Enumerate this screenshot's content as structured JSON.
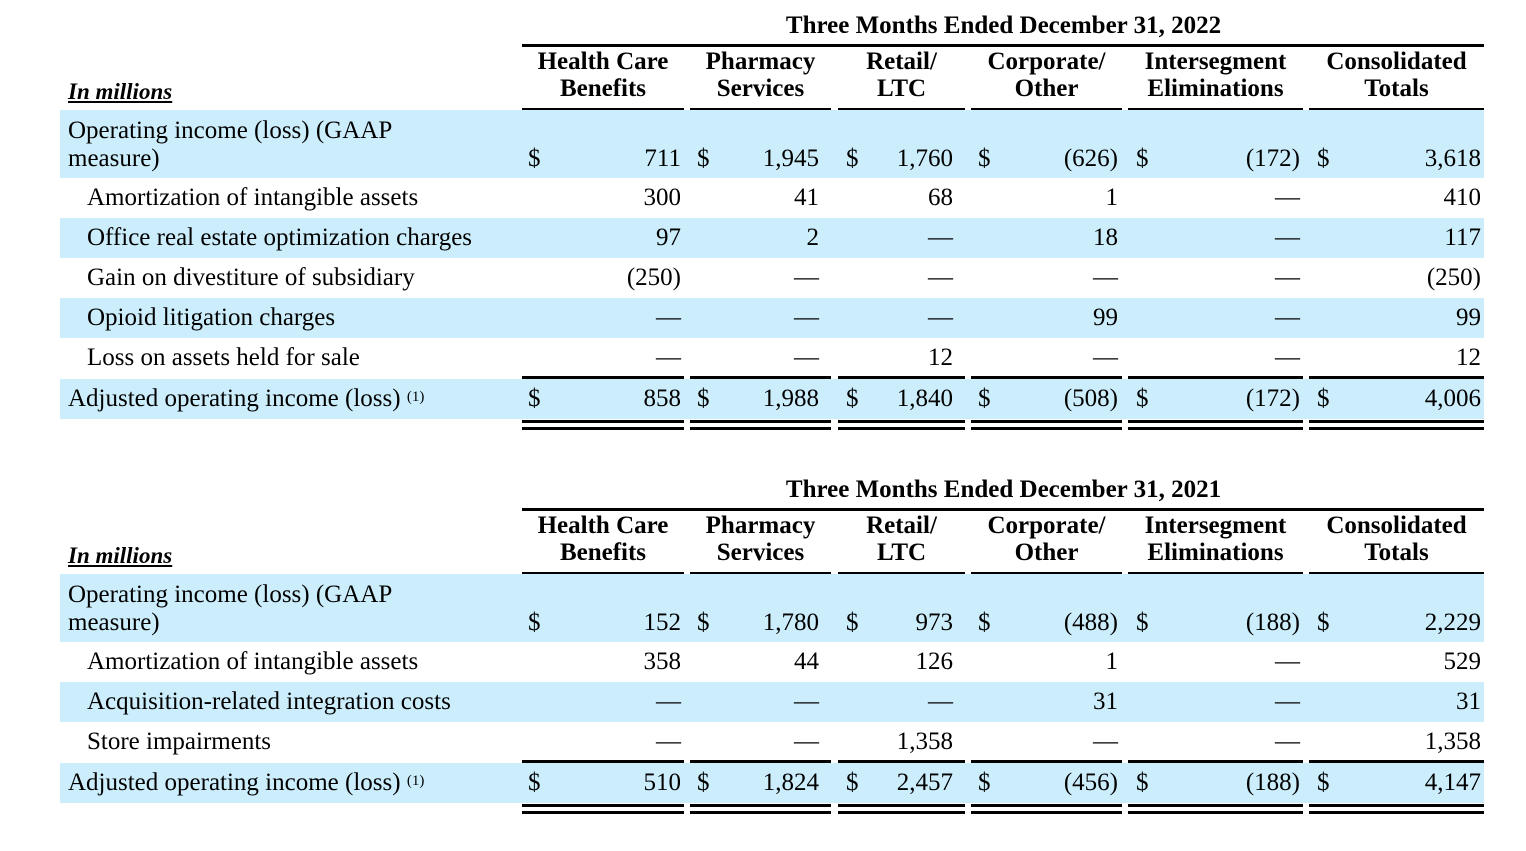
{
  "tables": [
    {
      "period": "Three Months Ended December 31, 2022",
      "units_label": "In millions",
      "columns": [
        {
          "line1": "Health Care",
          "line2": "Benefits"
        },
        {
          "line1": "Pharmacy",
          "line2": "Services"
        },
        {
          "line1": "Retail/",
          "line2": "LTC"
        },
        {
          "line1": "Corporate/",
          "line2": "Other"
        },
        {
          "line1": "Intersegment",
          "line2": "Eliminations"
        },
        {
          "line1": "Consolidated",
          "line2": "Totals"
        }
      ],
      "currency_symbol": "$",
      "rows": [
        {
          "label": "Operating income (loss) (GAAP measure)",
          "label_line1": "Operating income (loss) (GAAP",
          "label_line2": "measure)",
          "values": [
            "711",
            "1,945",
            "1,760",
            "(626)",
            "(172)",
            "3,618"
          ],
          "show_dollar": true,
          "shaded": true
        },
        {
          "label": "Amortization of intangible assets",
          "values": [
            "300",
            "41",
            "68",
            "1",
            "—",
            "410"
          ],
          "shaded": false
        },
        {
          "label": "Office real estate optimization charges",
          "values": [
            "97",
            "2",
            "—",
            "18",
            "—",
            "117"
          ],
          "shaded": true
        },
        {
          "label": "Gain on divestiture of subsidiary",
          "values": [
            "(250)",
            "—",
            "—",
            "—",
            "—",
            "(250)"
          ],
          "shaded": false
        },
        {
          "label": "Opioid litigation charges",
          "values": [
            "—",
            "—",
            "—",
            "99",
            "—",
            "99"
          ],
          "shaded": true
        },
        {
          "label": "Loss on assets held for sale",
          "values": [
            "—",
            "—",
            "12",
            "—",
            "—",
            "12"
          ],
          "shaded": false
        }
      ],
      "total_row": {
        "label": "Adjusted operating income (loss)",
        "footnote": "(1)",
        "values": [
          "858",
          "1,988",
          "1,840",
          "(508)",
          "(172)",
          "4,006"
        ]
      }
    },
    {
      "period": "Three Months Ended December 31, 2021",
      "units_label": "In millions",
      "columns": [
        {
          "line1": "Health Care",
          "line2": "Benefits"
        },
        {
          "line1": "Pharmacy",
          "line2": "Services"
        },
        {
          "line1": "Retail/",
          "line2": "LTC"
        },
        {
          "line1": "Corporate/",
          "line2": "Other"
        },
        {
          "line1": "Intersegment",
          "line2": "Eliminations"
        },
        {
          "line1": "Consolidated",
          "line2": "Totals"
        }
      ],
      "currency_symbol": "$",
      "rows": [
        {
          "label": "Operating income (loss) (GAAP measure)",
          "label_line1": "Operating income (loss) (GAAP",
          "label_line2": "measure)",
          "values": [
            "152",
            "1,780",
            "973",
            "(488)",
            "(188)",
            "2,229"
          ],
          "show_dollar": true,
          "shaded": true
        },
        {
          "label": "Amortization of intangible assets",
          "values": [
            "358",
            "44",
            "126",
            "1",
            "—",
            "529"
          ],
          "shaded": false
        },
        {
          "label": "Acquisition-related integration costs",
          "values": [
            "—",
            "—",
            "—",
            "31",
            "—",
            "31"
          ],
          "shaded": true
        },
        {
          "label": "Store impairments",
          "values": [
            "—",
            "—",
            "1,358",
            "—",
            "—",
            "1,358"
          ],
          "shaded": false
        }
      ],
      "total_row": {
        "label": "Adjusted operating income (loss)",
        "footnote": "(1)",
        "values": [
          "510",
          "1,824",
          "2,457",
          "(456)",
          "(188)",
          "4,147"
        ]
      }
    }
  ]
}
